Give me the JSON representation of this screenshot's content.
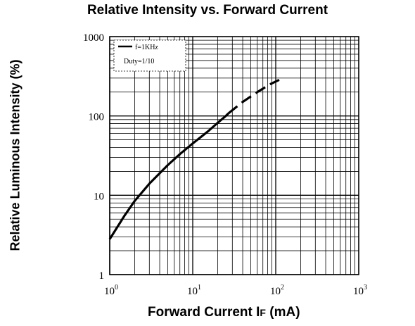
{
  "chart_data": {
    "type": "line",
    "title": "Relative Intensity vs. Forward Current",
    "xlabel": "Forward Current IF (mA)",
    "xlabel_main": "Forward Current I",
    "xlabel_sub": "F",
    "xlabel_unit": " (mA)",
    "ylabel": "Relative Luminous Intensity (%)",
    "x_scale": "log",
    "y_scale": "log",
    "xlim": [
      1,
      1000
    ],
    "ylim": [
      1,
      1000
    ],
    "x_ticks": [
      {
        "value": 1,
        "base": "10",
        "exp": "0"
      },
      {
        "value": 10,
        "base": "10",
        "exp": "1"
      },
      {
        "value": 100,
        "base": "10",
        "exp": "2"
      },
      {
        "value": 1000,
        "base": "10",
        "exp": "3"
      }
    ],
    "y_ticks": [
      {
        "value": 1,
        "label": "1"
      },
      {
        "value": 10,
        "label": "10"
      },
      {
        "value": 100,
        "label": "100"
      },
      {
        "value": 1000,
        "label": "1000"
      }
    ],
    "grid": true,
    "legend": {
      "placement": "top-left",
      "lines": [
        "f=1KHz",
        "Duty=1/10"
      ]
    },
    "series": [
      {
        "style": "solid",
        "points": [
          [
            1,
            2.8
          ],
          [
            1.5,
            5.5
          ],
          [
            2,
            8.5
          ],
          [
            3,
            14
          ],
          [
            5,
            24
          ],
          [
            7,
            33
          ],
          [
            10,
            45
          ],
          [
            15,
            63
          ],
          [
            20,
            82
          ],
          [
            25,
            100
          ],
          [
            27,
            108
          ]
        ]
      },
      {
        "style": "dashed",
        "points": [
          [
            27,
            108
          ],
          [
            40,
            150
          ],
          [
            60,
            200
          ],
          [
            85,
            250
          ],
          [
            110,
            285
          ]
        ]
      }
    ]
  }
}
